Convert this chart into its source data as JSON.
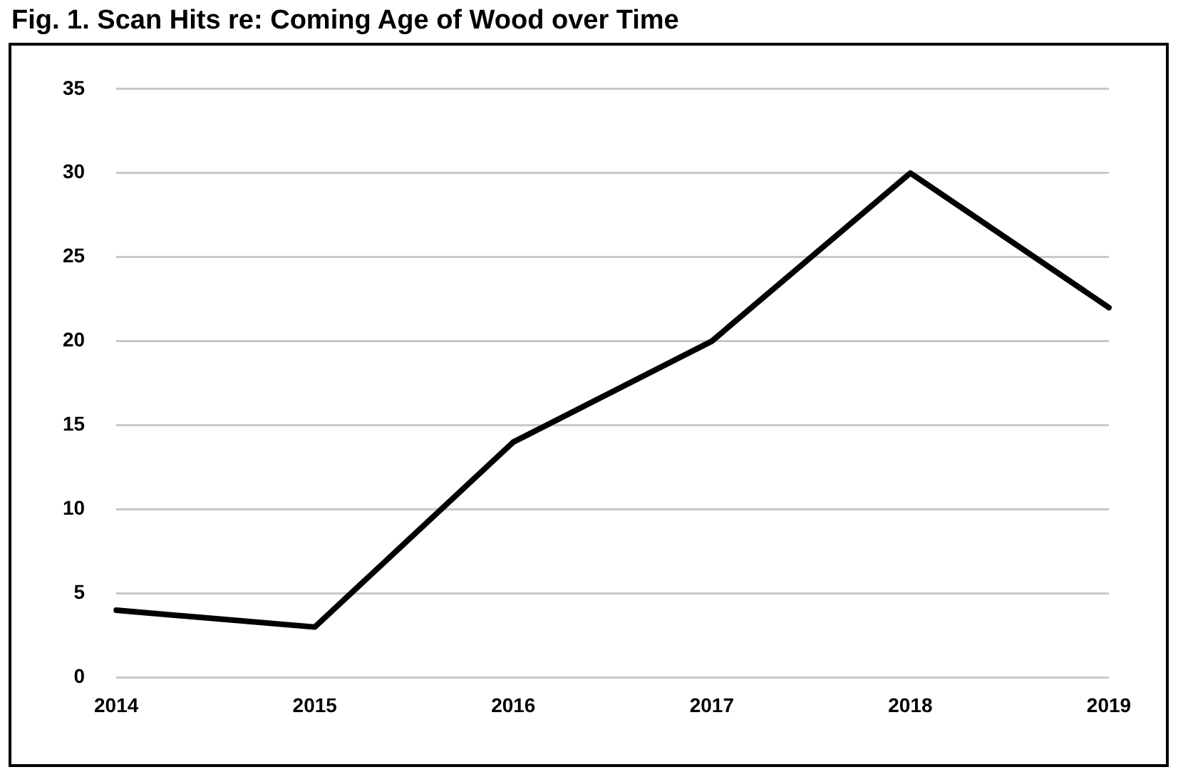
{
  "chart_data": {
    "type": "line",
    "title": "Fig. 1. Scan Hits re: Coming Age of Wood over Time",
    "categories": [
      "2014",
      "2015",
      "2016",
      "2017",
      "2018",
      "2019"
    ],
    "series": [
      {
        "color": "#000000",
        "values": [
          4,
          3,
          14,
          20,
          30,
          22
        ]
      }
    ],
    "ylim": [
      0,
      35
    ],
    "yticks": [
      0,
      5,
      10,
      15,
      20,
      25,
      30,
      35
    ],
    "grid": "y",
    "legend": false,
    "marker": "none",
    "line_style": "solid"
  }
}
